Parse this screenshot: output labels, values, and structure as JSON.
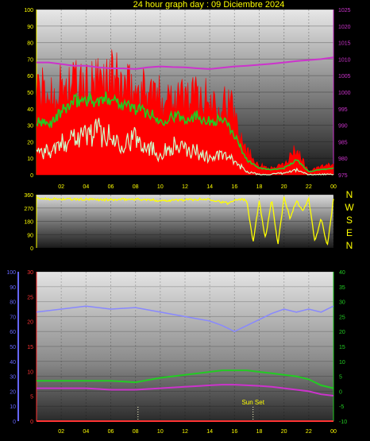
{
  "title": "24 hour graph day : 09 Diciembre 2024",
  "colors": {
    "background": "#000000",
    "title": "#ffff00",
    "gust": "#ff0000",
    "avg_wind": "#22cc22",
    "min_wind": "#ccffcc",
    "pressure": "#cc33cc",
    "direction": "#ffff00",
    "humidity": "#8888ff",
    "solar": "#ff3333",
    "temperature": "#22cc22",
    "dewpoint": "#cc33cc",
    "axis_left": "#ffff00",
    "axis_right_pressure": "#cc33cc",
    "axis_humidity": "#6666ff",
    "axis_solar": "#ff3333",
    "axis_temp": "#22cc22"
  },
  "x_tick_labels": [
    "02",
    "04",
    "06",
    "08",
    "10",
    "12",
    "14",
    "16",
    "18",
    "20",
    "22",
    "00"
  ],
  "direction_letters": [
    "N",
    "W",
    "S",
    "E",
    "N"
  ],
  "chart_data": [
    {
      "type": "line",
      "id": "wind",
      "x_hours": [
        0,
        1,
        2,
        3,
        4,
        5,
        6,
        7,
        8,
        9,
        10,
        11,
        12,
        13,
        14,
        15,
        16,
        17,
        18,
        19,
        20,
        21,
        22,
        23,
        24
      ],
      "ylim_left": [
        0,
        100
      ],
      "left_ticks": [
        "0",
        "10",
        "20",
        "30",
        "40",
        "50",
        "60",
        "70",
        "80",
        "90",
        "100"
      ],
      "ylim_right": [
        975,
        1025
      ],
      "right_ticks": [
        "975",
        "980",
        "985",
        "990",
        "995",
        "1000",
        "1005",
        "1010",
        "1015",
        "1020",
        "1025"
      ],
      "series": [
        {
          "key": "gust",
          "values": [
            52,
            48,
            53,
            56,
            52,
            55,
            60,
            54,
            50,
            52,
            46,
            50,
            47,
            48,
            44,
            47,
            38,
            15,
            6,
            4,
            6,
            16,
            2,
            5,
            6
          ]
        },
        {
          "key": "avg",
          "values": [
            32,
            30,
            38,
            44,
            46,
            44,
            47,
            43,
            40,
            38,
            32,
            36,
            34,
            36,
            32,
            34,
            24,
            9,
            4,
            3,
            4,
            9,
            2,
            3,
            4
          ]
        },
        {
          "key": "min",
          "values": [
            15,
            14,
            18,
            25,
            24,
            27,
            22,
            20,
            22,
            18,
            12,
            18,
            15,
            14,
            10,
            12,
            8,
            2,
            0,
            0,
            1,
            3,
            0,
            0,
            0
          ]
        },
        {
          "key": "pressure",
          "values": [
            1009,
            1009,
            1008.5,
            1008,
            1008,
            1007.5,
            1007.2,
            1007.2,
            1007,
            1007.5,
            1007.8,
            1007.6,
            1007.5,
            1007.2,
            1007,
            1007.4,
            1007.8,
            1008,
            1008.3,
            1008.6,
            1009,
            1009.4,
            1009.7,
            1010,
            1010.5
          ]
        }
      ]
    },
    {
      "type": "line",
      "id": "direction",
      "x_hours": [
        0,
        2,
        4,
        6,
        8,
        10,
        12,
        14,
        15.5,
        16,
        16.5,
        17,
        17.5,
        18,
        18.5,
        19,
        19.5,
        20,
        20.5,
        21,
        21.5,
        22,
        22.5,
        23,
        23.5,
        24
      ],
      "ylim": [
        0,
        360
      ],
      "ticks": [
        "0",
        "90",
        "180",
        "270",
        "360"
      ],
      "series": [
        {
          "key": "direction",
          "values": [
            335,
            330,
            328,
            325,
            330,
            320,
            325,
            330,
            300,
            328,
            330,
            320,
            40,
            320,
            60,
            330,
            20,
            340,
            200,
            320,
            250,
            330,
            40,
            200,
            10,
            330
          ]
        }
      ]
    },
    {
      "type": "line",
      "id": "climate",
      "x_hours": [
        0,
        2,
        4,
        6,
        8,
        10,
        12,
        14,
        15,
        16,
        17,
        18,
        19,
        20,
        21,
        22,
        23,
        24
      ],
      "humidity_ylim": [
        0,
        100
      ],
      "humidity_ticks": [
        "0",
        "10",
        "20",
        "30",
        "40",
        "50",
        "60",
        "70",
        "80",
        "90",
        "100"
      ],
      "solar_ylim": [
        0,
        30
      ],
      "solar_ticks": [
        "0",
        "5",
        "10",
        "15",
        "20",
        "25",
        "30"
      ],
      "temp_ylim": [
        -10,
        40
      ],
      "temp_ticks": [
        "-10",
        "-5",
        "0",
        "5",
        "10",
        "15",
        "20",
        "25",
        "30",
        "35",
        "40"
      ],
      "series": [
        {
          "key": "humidity",
          "values": [
            73,
            75,
            77,
            75,
            76,
            73,
            70,
            67,
            64,
            60,
            64,
            68,
            72,
            75,
            73,
            75,
            73,
            77
          ]
        },
        {
          "key": "temperature",
          "values": [
            3.5,
            3.5,
            3.5,
            3.5,
            3,
            4.5,
            5.5,
            6.5,
            7,
            7,
            7,
            6.5,
            6,
            5.5,
            5,
            4,
            2,
            1
          ]
        },
        {
          "key": "dewpoint",
          "values": [
            1,
            1,
            1,
            0.5,
            0.5,
            1,
            1.5,
            2,
            2.2,
            2.2,
            2,
            1.8,
            1.5,
            1,
            0.5,
            0,
            -1,
            -1.5
          ]
        },
        {
          "key": "solar",
          "values": [
            0,
            0,
            0,
            0,
            0,
            0,
            0,
            0,
            0,
            0,
            0,
            0,
            0,
            0,
            0,
            0,
            0,
            0
          ]
        }
      ],
      "annotation": {
        "label": "Sun Set",
        "hour": 17.5
      },
      "sunrise_hour": 8.2
    }
  ]
}
